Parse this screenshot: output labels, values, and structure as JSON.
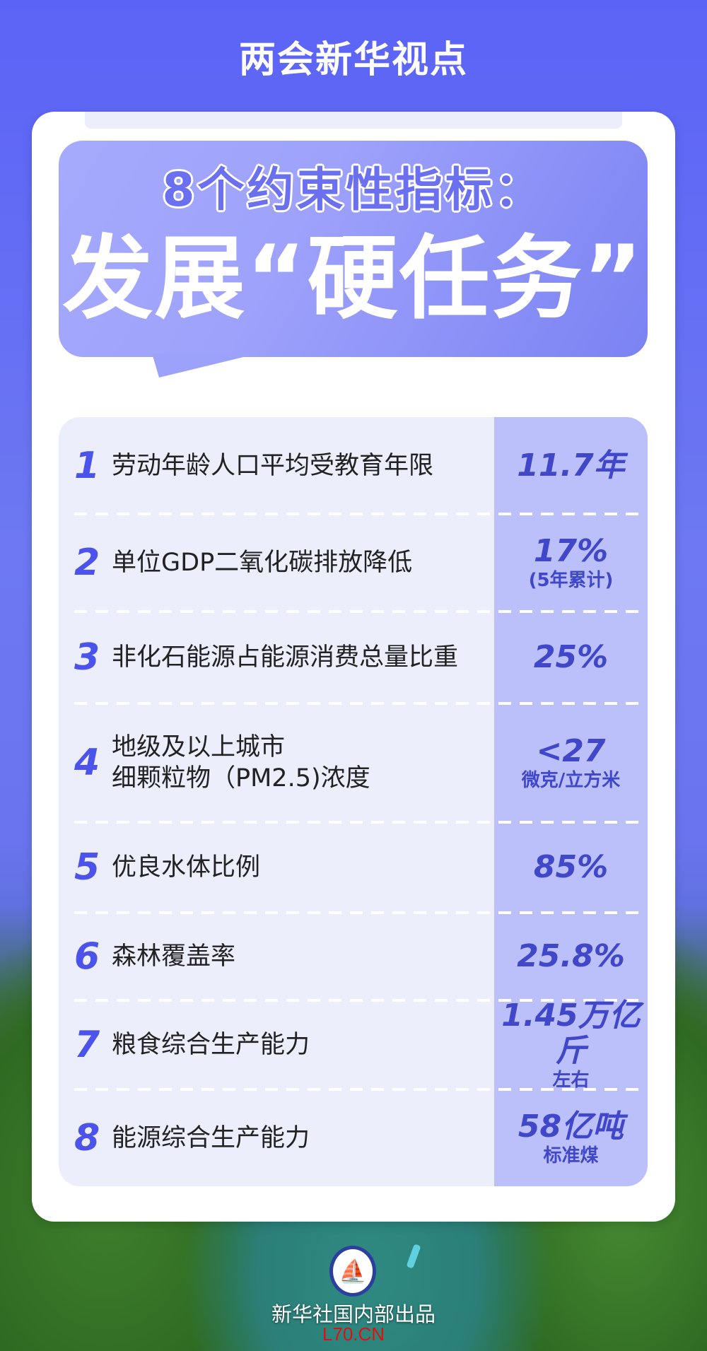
{
  "header": {
    "title": "两会新华视点"
  },
  "headline": {
    "line1": "8个约束性指标：",
    "line2": "发展“硬任务”"
  },
  "indicators": [
    {
      "n": "1",
      "label": "劳动年龄人口平均受教育年限",
      "value": "11.7年",
      "note": ""
    },
    {
      "n": "2",
      "label": "单位GDP二氧化碳排放降低",
      "value": "17%",
      "note": "(5年累计)"
    },
    {
      "n": "3",
      "label": "非化石能源占能源消费总量比重",
      "value": "25%",
      "note": ""
    },
    {
      "n": "4",
      "label": "地级及以上城市\n细颗粒物（PM2.5)浓度",
      "value": "<27",
      "note": "微克/立方米"
    },
    {
      "n": "5",
      "label": "优良水体比例",
      "value": "85%",
      "note": ""
    },
    {
      "n": "6",
      "label": "森林覆盖率",
      "value": "25.8%",
      "note": ""
    },
    {
      "n": "7",
      "label": "粮食综合生产能力",
      "value": "1.45万亿斤",
      "note": "左右"
    },
    {
      "n": "8",
      "label": "能源综合生产能力",
      "value": "58亿吨",
      "note": "标准煤"
    }
  ],
  "footer": {
    "logo": "新华社",
    "credit": "新华社国内部出品",
    "watermark": "L70.CN"
  },
  "colors": {
    "accent": "#4b53ea",
    "value_text": "#4047c9",
    "value_column": "#bcc0fa",
    "table_bg": "#eceefc"
  }
}
